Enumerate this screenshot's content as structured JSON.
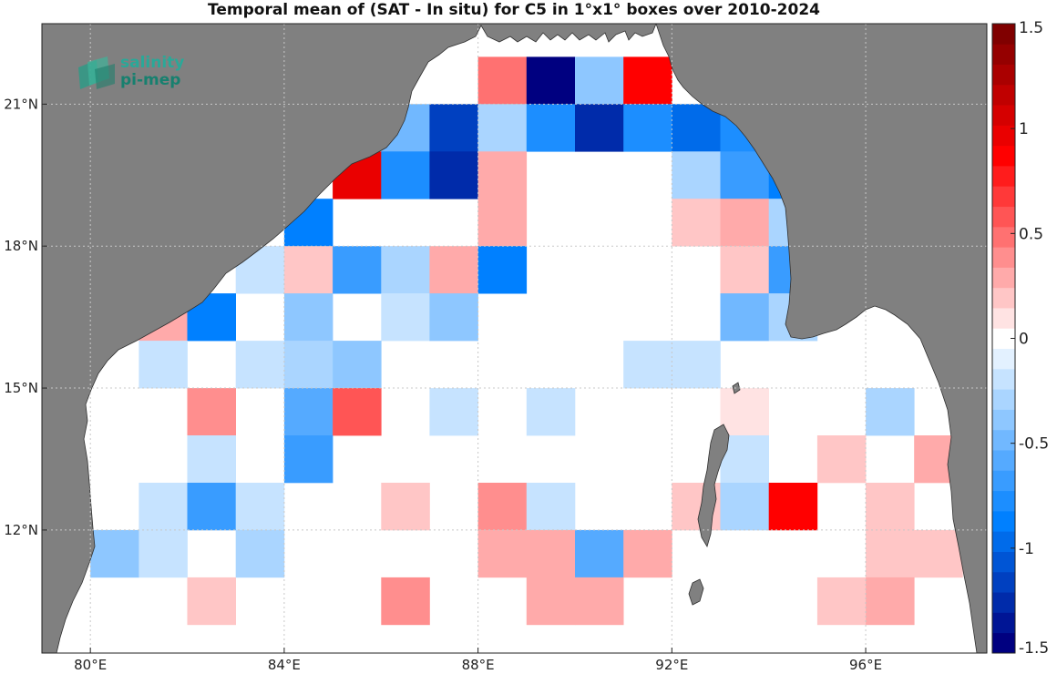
{
  "title": "Temporal mean of (SAT - In situ) for C5 in 1°x1° boxes over 2010-2024",
  "logo": {
    "line1": "salinity",
    "line2": "pi-mep"
  },
  "colors": {
    "land": "#808080",
    "ocean": "#ffffff",
    "grid": "#c8c8c8"
  },
  "colorbar": {
    "min": -1.5,
    "max": 1.5,
    "ticks": [
      {
        "value": 1.5,
        "label": "1.5"
      },
      {
        "value": 1,
        "label": "1"
      },
      {
        "value": 0.5,
        "label": "0.5"
      },
      {
        "value": 0,
        "label": "0"
      },
      {
        "value": -0.5,
        "label": "-0.5"
      },
      {
        "value": -1,
        "label": "-1"
      },
      {
        "value": -1.5,
        "label": "-1.5"
      }
    ]
  },
  "chart_data": {
    "type": "heatmap",
    "title": "Temporal mean of (SAT - In situ) for C5 in 1°x1° boxes over 2010-2024",
    "cell_size_deg": 1,
    "lon_range": [
      79,
      98.5
    ],
    "lat_range": [
      9.4,
      22.7
    ],
    "x_ticks": [
      {
        "lon": 80,
        "label": "80°E"
      },
      {
        "lon": 84,
        "label": "84°E"
      },
      {
        "lon": 88,
        "label": "88°E"
      },
      {
        "lon": 92,
        "label": "92°E"
      },
      {
        "lon": 96,
        "label": "96°E"
      }
    ],
    "y_ticks": [
      {
        "lat": 21,
        "label": "21°N"
      },
      {
        "lat": 18,
        "label": "18°N"
      },
      {
        "lat": 15,
        "label": "15°N"
      },
      {
        "lat": 12,
        "label": "12°N"
      }
    ],
    "cells": [
      {
        "lon": 88.5,
        "lat": 21.5,
        "value": 0.45
      },
      {
        "lon": 89.5,
        "lat": 21.5,
        "value": -1.5
      },
      {
        "lon": 90.5,
        "lat": 21.5,
        "value": -0.4
      },
      {
        "lon": 91.5,
        "lat": 21.5,
        "value": 0.85
      },
      {
        "lon": 86.5,
        "lat": 20.5,
        "value": -0.45
      },
      {
        "lon": 87.5,
        "lat": 20.5,
        "value": -1.15
      },
      {
        "lon": 88.5,
        "lat": 20.5,
        "value": -0.3
      },
      {
        "lon": 89.5,
        "lat": 20.5,
        "value": -0.8
      },
      {
        "lon": 90.5,
        "lat": 20.5,
        "value": -1.25
      },
      {
        "lon": 91.5,
        "lat": 20.5,
        "value": -0.8
      },
      {
        "lon": 92.5,
        "lat": 20.5,
        "value": -0.95
      },
      {
        "lon": 93.5,
        "lat": 20.5,
        "value": -0.8
      },
      {
        "lon": 85.5,
        "lat": 19.5,
        "value": 1.0
      },
      {
        "lon": 86.5,
        "lat": 19.5,
        "value": -0.8
      },
      {
        "lon": 87.5,
        "lat": 19.5,
        "value": -1.25
      },
      {
        "lon": 88.5,
        "lat": 19.5,
        "value": 0.25
      },
      {
        "lon": 92.5,
        "lat": 19.5,
        "value": -0.3
      },
      {
        "lon": 93.5,
        "lat": 19.5,
        "value": -0.7
      },
      {
        "lon": 94.5,
        "lat": 19.5,
        "value": -0.85
      },
      {
        "lon": 84.5,
        "lat": 18.5,
        "value": -0.85
      },
      {
        "lon": 88.5,
        "lat": 18.5,
        "value": 0.25
      },
      {
        "lon": 92.5,
        "lat": 18.5,
        "value": 0.15
      },
      {
        "lon": 93.5,
        "lat": 18.5,
        "value": 0.3
      },
      {
        "lon": 94.5,
        "lat": 18.5,
        "value": -0.25
      },
      {
        "lon": 83.5,
        "lat": 17.5,
        "value": -0.15
      },
      {
        "lon": 84.5,
        "lat": 17.5,
        "value": 0.15
      },
      {
        "lon": 85.5,
        "lat": 17.5,
        "value": -0.65
      },
      {
        "lon": 86.5,
        "lat": 17.5,
        "value": -0.3
      },
      {
        "lon": 87.5,
        "lat": 17.5,
        "value": 0.3
      },
      {
        "lon": 88.5,
        "lat": 17.5,
        "value": -0.85
      },
      {
        "lon": 93.5,
        "lat": 17.5,
        "value": 0.15
      },
      {
        "lon": 94.5,
        "lat": 17.5,
        "value": -0.7
      },
      {
        "lon": 81.5,
        "lat": 16.5,
        "value": 0.3
      },
      {
        "lon": 82.5,
        "lat": 16.5,
        "value": -0.85
      },
      {
        "lon": 84.5,
        "lat": 16.5,
        "value": -0.4
      },
      {
        "lon": 86.5,
        "lat": 16.5,
        "value": -0.15
      },
      {
        "lon": 87.5,
        "lat": 16.5,
        "value": -0.4
      },
      {
        "lon": 93.5,
        "lat": 16.5,
        "value": -0.45
      },
      {
        "lon": 94.5,
        "lat": 16.5,
        "value": -0.3
      },
      {
        "lon": 81.5,
        "lat": 15.5,
        "value": -0.15
      },
      {
        "lon": 83.5,
        "lat": 15.5,
        "value": -0.15
      },
      {
        "lon": 84.5,
        "lat": 15.5,
        "value": -0.3
      },
      {
        "lon": 85.5,
        "lat": 15.5,
        "value": -0.4
      },
      {
        "lon": 91.5,
        "lat": 15.5,
        "value": -0.15
      },
      {
        "lon": 92.5,
        "lat": 15.5,
        "value": -0.15
      },
      {
        "lon": 82.5,
        "lat": 14.5,
        "value": 0.4
      },
      {
        "lon": 84.5,
        "lat": 14.5,
        "value": -0.55
      },
      {
        "lon": 85.5,
        "lat": 14.5,
        "value": 0.55
      },
      {
        "lon": 87.5,
        "lat": 14.5,
        "value": -0.15
      },
      {
        "lon": 89.5,
        "lat": 14.5,
        "value": -0.15
      },
      {
        "lon": 93.5,
        "lat": 14.5,
        "value": 0.1
      },
      {
        "lon": 96.5,
        "lat": 14.5,
        "value": -0.3
      },
      {
        "lon": 82.5,
        "lat": 13.5,
        "value": -0.15
      },
      {
        "lon": 84.5,
        "lat": 13.5,
        "value": -0.7
      },
      {
        "lon": 93.5,
        "lat": 13.5,
        "value": -0.15
      },
      {
        "lon": 95.5,
        "lat": 13.5,
        "value": 0.15
      },
      {
        "lon": 97.5,
        "lat": 13.5,
        "value": 0.25
      },
      {
        "lon": 81.5,
        "lat": 12.5,
        "value": -0.15
      },
      {
        "lon": 82.5,
        "lat": 12.5,
        "value": -0.7
      },
      {
        "lon": 83.5,
        "lat": 12.5,
        "value": -0.15
      },
      {
        "lon": 86.5,
        "lat": 12.5,
        "value": 0.15
      },
      {
        "lon": 88.5,
        "lat": 12.5,
        "value": 0.4
      },
      {
        "lon": 89.5,
        "lat": 12.5,
        "value": -0.15
      },
      {
        "lon": 92.5,
        "lat": 12.5,
        "value": 0.15
      },
      {
        "lon": 93.5,
        "lat": 12.5,
        "value": -0.3
      },
      {
        "lon": 94.5,
        "lat": 12.5,
        "value": 0.85
      },
      {
        "lon": 96.5,
        "lat": 12.5,
        "value": 0.15
      },
      {
        "lon": 80.5,
        "lat": 11.5,
        "value": -0.4
      },
      {
        "lon": 81.5,
        "lat": 11.5,
        "value": -0.15
      },
      {
        "lon": 83.5,
        "lat": 11.5,
        "value": -0.3
      },
      {
        "lon": 88.5,
        "lat": 11.5,
        "value": 0.25
      },
      {
        "lon": 89.5,
        "lat": 11.5,
        "value": 0.25
      },
      {
        "lon": 90.5,
        "lat": 11.5,
        "value": -0.6
      },
      {
        "lon": 91.5,
        "lat": 11.5,
        "value": 0.3
      },
      {
        "lon": 96.5,
        "lat": 11.5,
        "value": 0.15
      },
      {
        "lon": 97.5,
        "lat": 11.5,
        "value": 0.15
      },
      {
        "lon": 82.5,
        "lat": 10.5,
        "value": 0.15
      },
      {
        "lon": 86.5,
        "lat": 10.5,
        "value": 0.4
      },
      {
        "lon": 89.5,
        "lat": 10.5,
        "value": 0.25
      },
      {
        "lon": 90.5,
        "lat": 10.5,
        "value": 0.25
      },
      {
        "lon": 95.5,
        "lat": 10.5,
        "value": 0.15
      },
      {
        "lon": 96.5,
        "lat": 10.5,
        "value": 0.3
      }
    ]
  }
}
